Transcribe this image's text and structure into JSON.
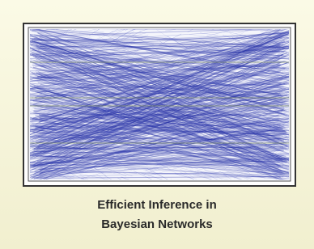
{
  "caption": {
    "lines": [
      "Efficient Inference in",
      "Bayesian Networks"
    ]
  }
}
